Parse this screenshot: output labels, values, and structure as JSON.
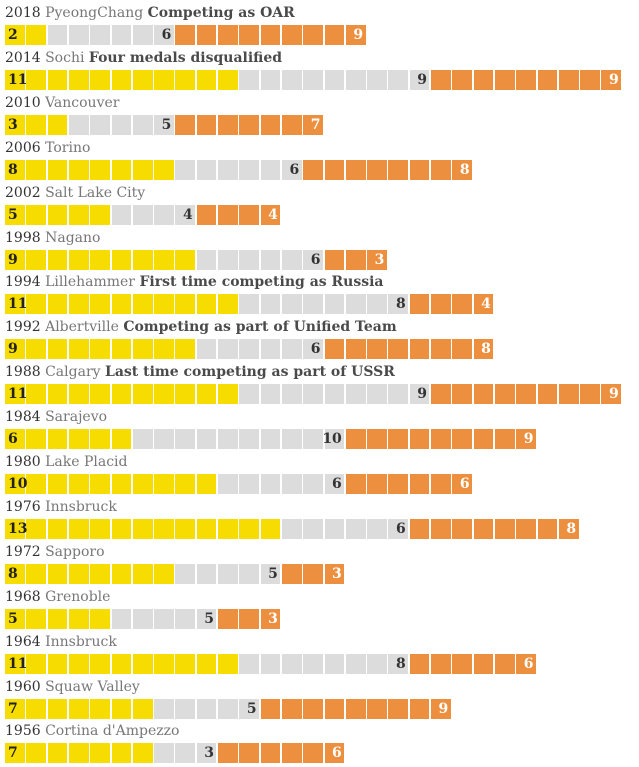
{
  "colors": {
    "gold": "#F7DC00",
    "silver": "#DCDCDC",
    "bronze": "#EC9040",
    "divider": "#FFFFFF"
  },
  "chart_data": {
    "type": "bar",
    "stacked": true,
    "orientation": "horizontal",
    "series_order": [
      "gold",
      "silver",
      "bronze"
    ],
    "rows": [
      {
        "year": "2018",
        "place": "PyeongChang",
        "note": "Competing as OAR",
        "gold": 2,
        "silver": 6,
        "bronze": 9
      },
      {
        "year": "2014",
        "place": "Sochi",
        "note": "Four medals disqualified",
        "gold": 11,
        "silver": 9,
        "bronze": 9
      },
      {
        "year": "2010",
        "place": "Vancouver",
        "note": "",
        "gold": 3,
        "silver": 5,
        "bronze": 7
      },
      {
        "year": "2006",
        "place": "Torino",
        "note": "",
        "gold": 8,
        "silver": 6,
        "bronze": 8
      },
      {
        "year": "2002",
        "place": "Salt Lake City",
        "note": "",
        "gold": 5,
        "silver": 4,
        "bronze": 4
      },
      {
        "year": "1998",
        "place": "Nagano",
        "note": "",
        "gold": 9,
        "silver": 6,
        "bronze": 3
      },
      {
        "year": "1994",
        "place": "Lillehammer",
        "note": "First time competing as Russia",
        "gold": 11,
        "silver": 8,
        "bronze": 4
      },
      {
        "year": "1992",
        "place": "Albertville",
        "note": "Competing as part of Unified Team",
        "gold": 9,
        "silver": 6,
        "bronze": 8
      },
      {
        "year": "1988",
        "place": "Calgary",
        "note": "Last time competing as part of USSR",
        "gold": 11,
        "silver": 9,
        "bronze": 9
      },
      {
        "year": "1984",
        "place": "Sarajevo",
        "note": "",
        "gold": 6,
        "silver": 10,
        "bronze": 9
      },
      {
        "year": "1980",
        "place": "Lake Placid",
        "note": "",
        "gold": 10,
        "silver": 6,
        "bronze": 6
      },
      {
        "year": "1976",
        "place": "Innsbruck",
        "note": "",
        "gold": 13,
        "silver": 6,
        "bronze": 8
      },
      {
        "year": "1972",
        "place": "Sapporo",
        "note": "",
        "gold": 8,
        "silver": 5,
        "bronze": 3
      },
      {
        "year": "1968",
        "place": "Grenoble",
        "note": "",
        "gold": 5,
        "silver": 5,
        "bronze": 3
      },
      {
        "year": "1964",
        "place": "Innsbruck",
        "note": "",
        "gold": 11,
        "silver": 8,
        "bronze": 6
      },
      {
        "year": "1960",
        "place": "Squaw Valley",
        "note": "",
        "gold": 7,
        "silver": 5,
        "bronze": 9
      },
      {
        "year": "1956",
        "place": "Cortina d'Ampezzo",
        "note": "",
        "gold": 7,
        "silver": 3,
        "bronze": 6
      }
    ]
  }
}
